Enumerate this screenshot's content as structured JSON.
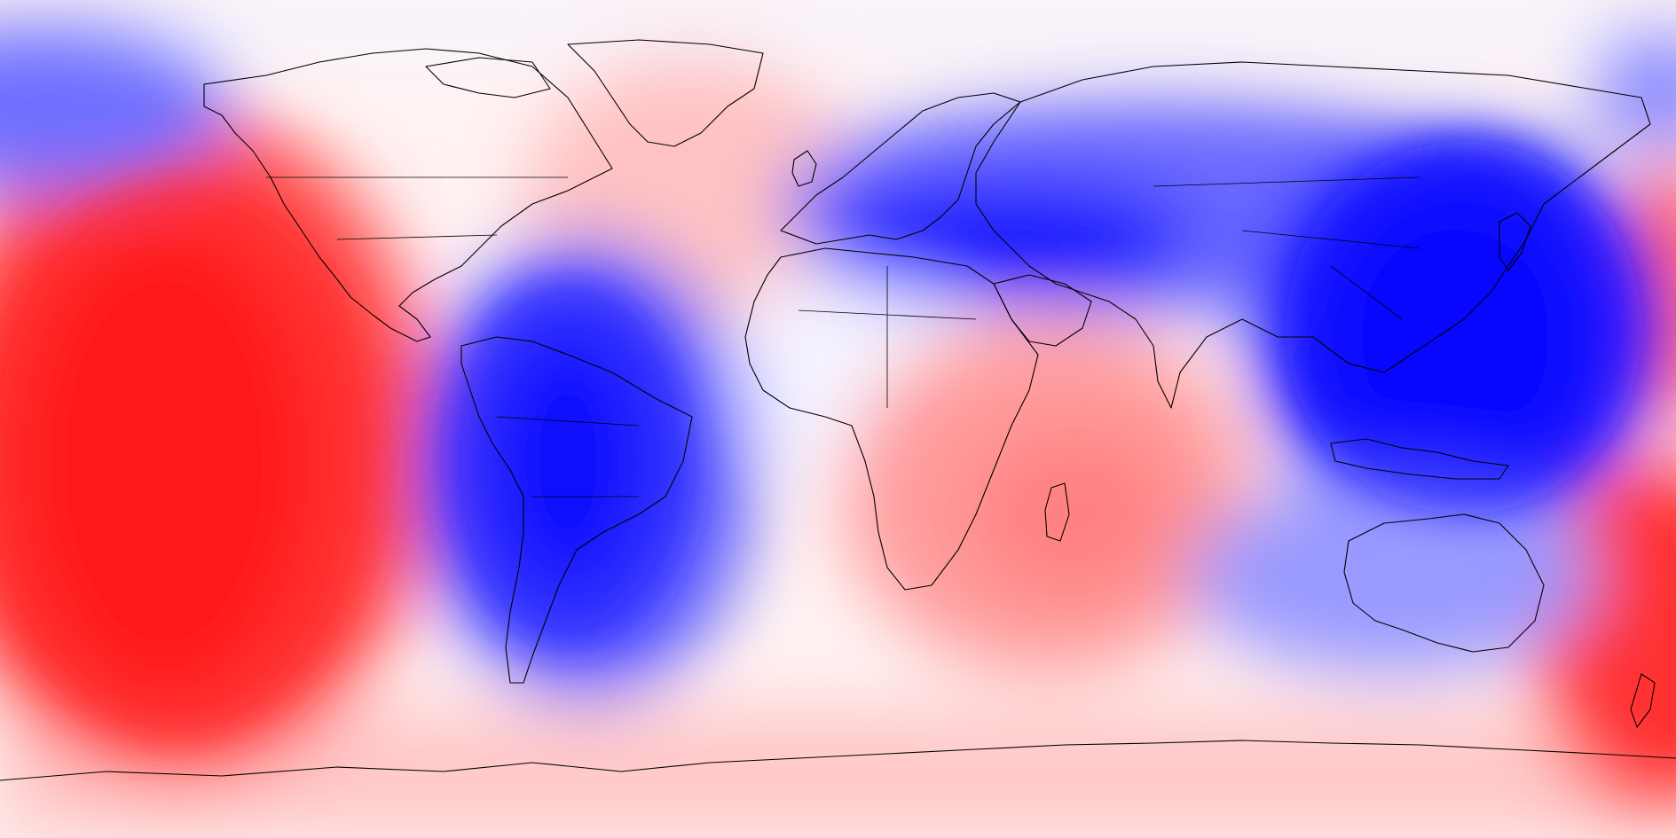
{
  "map": {
    "projection": "equirectangular",
    "longitude_range": [
      -180,
      180
    ],
    "latitude_range": [
      -90,
      90
    ],
    "color_scale": {
      "positive_color": "#ff0000",
      "negative_color": "#0000ff",
      "neutral_color": "#ffffff"
    },
    "anomaly_field": [
      {
        "name": "central-pacific-warm-anomaly",
        "sign": "positive",
        "intensity": 1.0
      },
      {
        "name": "south-america-cold-anomaly",
        "sign": "negative",
        "intensity": 1.0
      },
      {
        "name": "mediterranean-cold-anomaly",
        "sign": "negative",
        "intensity": 0.9
      },
      {
        "name": "east-asia-west-pacific-cold-anomaly",
        "sign": "negative",
        "intensity": 1.0
      },
      {
        "name": "north-atlantic-warm-anomaly",
        "sign": "positive",
        "intensity": 0.3
      },
      {
        "name": "indian-ocean-warm-anomaly",
        "sign": "positive",
        "intensity": 0.45
      },
      {
        "name": "east-pacific-nz-warm-anomaly",
        "sign": "positive",
        "intensity": 0.8
      },
      {
        "name": "southern-ocean-warm-band",
        "sign": "positive",
        "intensity": 0.25
      }
    ]
  }
}
